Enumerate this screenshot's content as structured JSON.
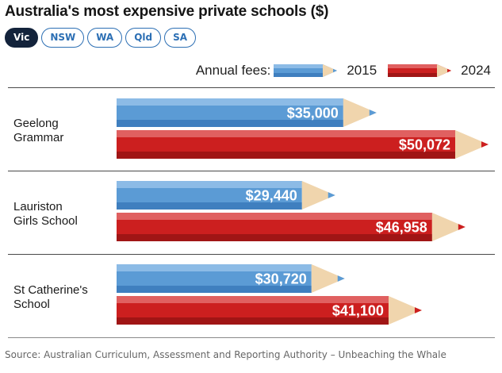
{
  "title": "Australia's most expensive private schools ($)",
  "tabs": [
    {
      "label": "Vic",
      "active": true
    },
    {
      "label": "NSW",
      "active": false
    },
    {
      "label": "WA",
      "active": false
    },
    {
      "label": "Qld",
      "active": false
    },
    {
      "label": "SA",
      "active": false
    }
  ],
  "legend": {
    "title": "Annual fees:",
    "items": [
      {
        "label": "2015",
        "color": "#5b9bd5"
      },
      {
        "label": "2024",
        "color": "#cc1f1f"
      }
    ]
  },
  "source": "Source: Australian Curriculum, Assessment and Reporting Authority – Unbeaching the Whale",
  "chart_data": {
    "type": "bar",
    "orientation": "horizontal",
    "title": "Australia's most expensive private schools ($)",
    "categories": [
      "Geelong Grammar",
      "Lauriston Girls School",
      "St Catherine's School"
    ],
    "category_lines": [
      [
        "Geelong",
        "Grammar"
      ],
      [
        "Lauriston",
        "Girls School"
      ],
      [
        "St Catherine's",
        "School"
      ]
    ],
    "series": [
      {
        "name": "2015",
        "color": "#5b9bd5",
        "values": [
          35000,
          29440,
          30720
        ],
        "labels": [
          "$35,000",
          "$29,440",
          "$30,720"
        ]
      },
      {
        "name": "2024",
        "color": "#cc1f1f",
        "values": [
          50072,
          46958,
          41100
        ],
        "labels": [
          "$50,072",
          "$46,958",
          "$41,100"
        ]
      }
    ],
    "xlim": [
      0,
      50072
    ],
    "grid": false,
    "legend_position": "top-right"
  }
}
